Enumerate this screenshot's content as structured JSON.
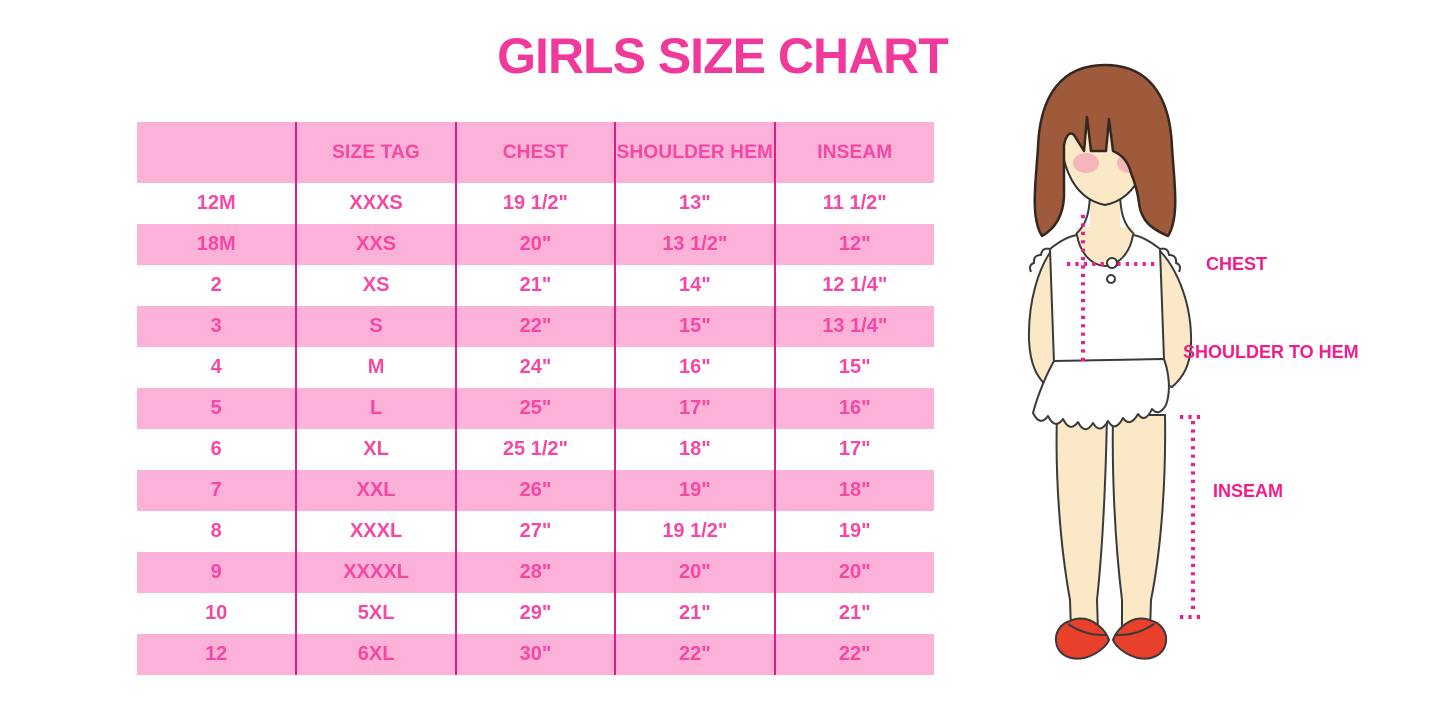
{
  "title": "GIRLS SIZE CHART",
  "chart_data": {
    "type": "table",
    "title": "GIRLS SIZE CHART",
    "columns": [
      "",
      "SIZE TAG",
      "CHEST",
      "SHOULDER HEM",
      "INSEAM"
    ],
    "rows": [
      [
        "12M",
        "XXXS",
        "19 1/2\"",
        "13\"",
        "11 1/2\""
      ],
      [
        "18M",
        "XXS",
        "20\"",
        "13 1/2\"",
        "12\""
      ],
      [
        "2",
        "XS",
        "21\"",
        "14\"",
        "12 1/4\""
      ],
      [
        "3",
        "S",
        "22\"",
        "15\"",
        "13 1/4\""
      ],
      [
        "4",
        "M",
        "24\"",
        "16\"",
        "15\""
      ],
      [
        "5",
        "L",
        "25\"",
        "17\"",
        "16\""
      ],
      [
        "6",
        "XL",
        "25 1/2\"",
        "18\"",
        "17\""
      ],
      [
        "7",
        "XXL",
        "26\"",
        "19\"",
        "18\""
      ],
      [
        "8",
        "XXXL",
        "27\"",
        "19 1/2\"",
        "19\""
      ],
      [
        "9",
        "XXXXL",
        "28\"",
        "20\"",
        "20\""
      ],
      [
        "10",
        "5XL",
        "29\"",
        "21\"",
        "21\""
      ],
      [
        "12",
        "6XL",
        "30\"",
        "22\"",
        "22\""
      ]
    ],
    "layout": {
      "zebra_striping": true,
      "header_background": "#FBB1D8",
      "grid": "vertical-only"
    }
  },
  "figure": {
    "labels": {
      "chest": "CHEST",
      "shoulder_to_hem": "SHOULDER TO HEM",
      "inseam": "INSEAM"
    }
  },
  "colors": {
    "title_pink": "#F0399A",
    "row_pink": "#FBB1D8",
    "divider_magenta": "#DE1C86",
    "table_text_pink": "#F647A3",
    "label_magenta": "#EE1E8C",
    "dotted_line_magenta": "#EC1E8C",
    "hair_brown": "#9E5A3B",
    "skin": "#FBE8C7",
    "shoe_red": "#E9402B",
    "background": "#FFFFFF"
  }
}
